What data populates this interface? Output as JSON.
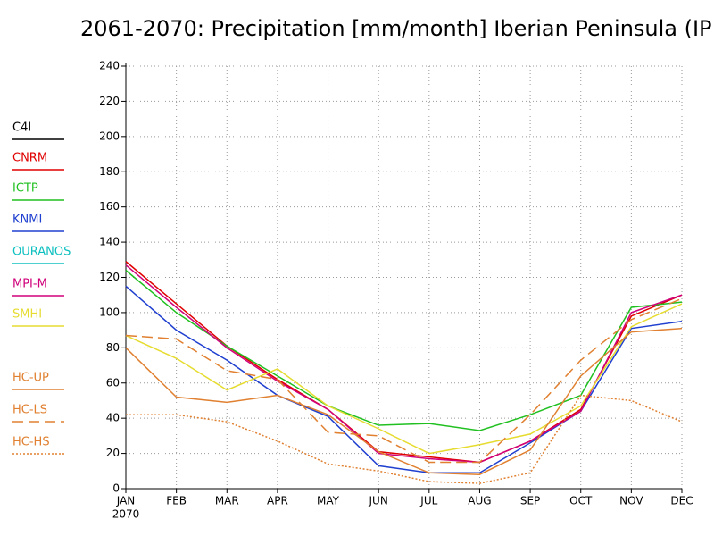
{
  "chart_data": {
    "type": "line",
    "title": "2061-2070: Precipitation [mm/month] Iberian Peninsula (IP",
    "categories": [
      "JAN",
      "FEB",
      "MAR",
      "APR",
      "MAY",
      "JUN",
      "JUL",
      "AUG",
      "SEP",
      "OCT",
      "NOV",
      "DEC"
    ],
    "x_sublabel": "2070",
    "ylim": [
      0,
      240
    ],
    "yticks": [
      0,
      20,
      40,
      60,
      80,
      100,
      120,
      140,
      160,
      180,
      200,
      220,
      240
    ],
    "grid": true,
    "legend": "left",
    "series": [
      {
        "name": "C4I",
        "color": "#000000",
        "dash": "solid",
        "values": [
          null,
          null,
          null,
          null,
          null,
          null,
          null,
          null,
          null,
          null,
          null,
          null
        ]
      },
      {
        "name": "CNRM",
        "color": "#e00000",
        "dash": "solid",
        "values": [
          129,
          105,
          81,
          62,
          45,
          21,
          18,
          15,
          27,
          45,
          98,
          110
        ]
      },
      {
        "name": "ICTP",
        "color": "#20c020",
        "dash": "solid",
        "values": [
          124,
          100,
          81,
          64,
          47,
          36,
          37,
          33,
          42,
          53,
          103,
          106
        ]
      },
      {
        "name": "KNMI",
        "color": "#2040d0",
        "dash": "solid",
        "values": [
          115,
          90,
          73,
          53,
          41,
          13,
          9,
          9,
          26,
          44,
          91,
          95
        ]
      },
      {
        "name": "OURANOS",
        "color": "#10c0c0",
        "dash": "solid",
        "values": [
          null,
          null,
          null,
          null,
          null,
          null,
          null,
          null,
          null,
          null,
          null,
          null
        ]
      },
      {
        "name": "MPI-M",
        "color": "#d0007a",
        "dash": "solid",
        "values": [
          127,
          103,
          80,
          61,
          45,
          20,
          17,
          15,
          27,
          44,
          100,
          110
        ]
      },
      {
        "name": "SMHI",
        "color": "#e6dc30",
        "dash": "solid",
        "values": [
          87,
          74,
          56,
          68,
          47,
          34,
          20,
          25,
          31,
          47,
          92,
          105
        ]
      },
      {
        "name": "HC-UP",
        "color": "#e08030",
        "dash": "solid",
        "values": [
          80,
          52,
          49,
          53,
          42,
          21,
          9,
          8,
          22,
          64,
          89,
          91
        ]
      },
      {
        "name": "HC-LS",
        "color": "#e08030",
        "dash": "dashed",
        "values": [
          87,
          85,
          67,
          62,
          32,
          30,
          15,
          15,
          42,
          73,
          96,
          108
        ]
      },
      {
        "name": "HC-HS",
        "color": "#e08030",
        "dash": "dotted",
        "values": [
          42,
          42,
          38,
          27,
          14,
          10,
          4,
          3,
          9,
          53,
          50,
          38
        ]
      }
    ]
  }
}
